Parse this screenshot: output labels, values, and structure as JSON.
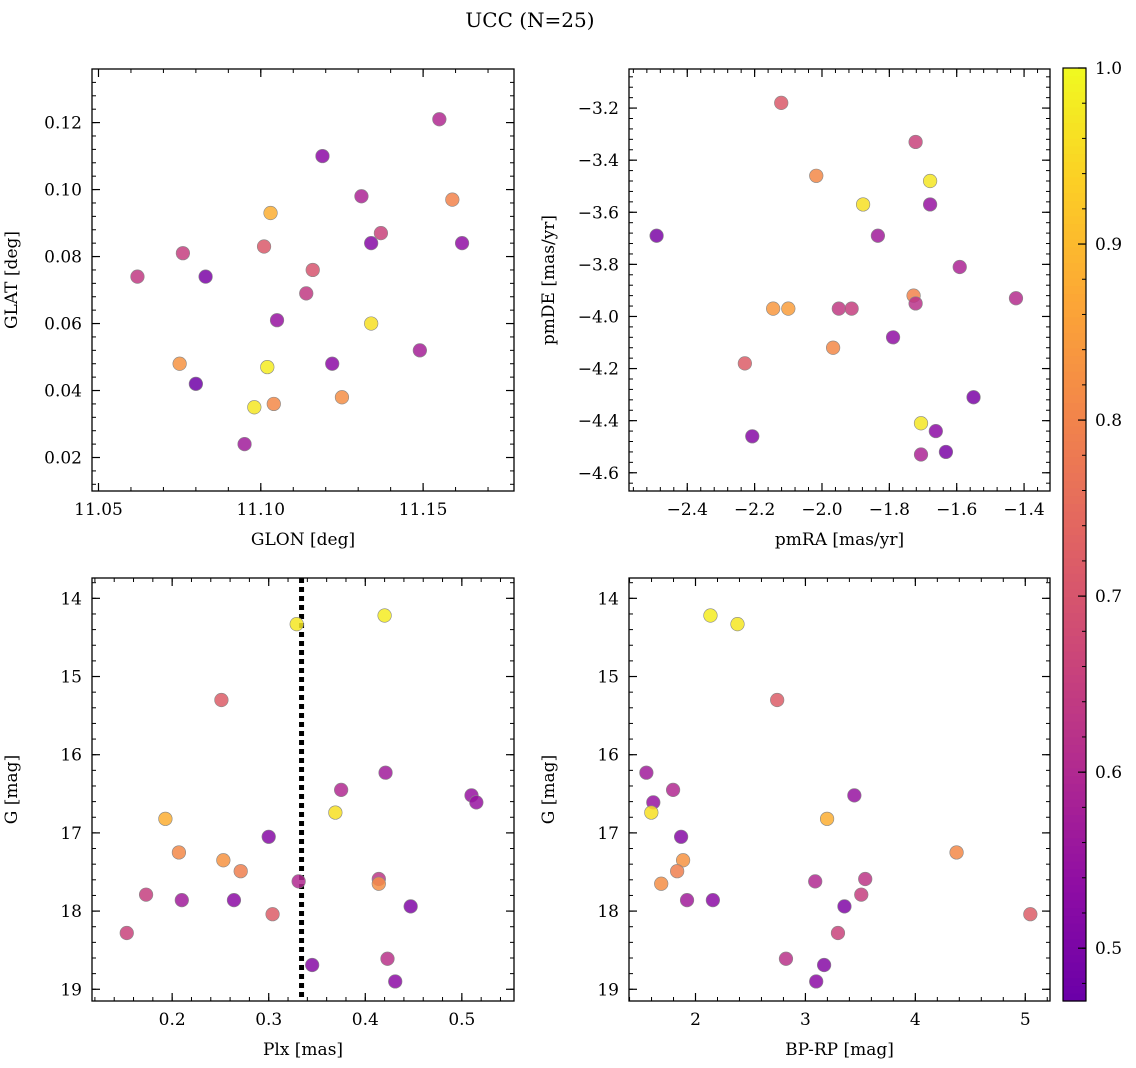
{
  "figure": {
    "title": "UCC (N=25)"
  },
  "colorbar": {
    "colormap": "plasma",
    "range": [
      0.47,
      1.0
    ],
    "ticks": [
      "0.5",
      "0.6",
      "0.7",
      "0.8",
      "0.9",
      "1.0"
    ],
    "tick_values": [
      0.5,
      0.6,
      0.7,
      0.8,
      0.9,
      1.0
    ]
  },
  "chart_data": [
    {
      "type": "scatter",
      "id": "glon-glat",
      "xlabel": "GLON [deg]",
      "ylabel": "GLAT [deg]",
      "xlim": [
        11.048,
        11.178
      ],
      "ylim": [
        0.01,
        0.136
      ],
      "x_ticks": [
        11.05,
        11.1,
        11.15
      ],
      "x_tick_labels": [
        "11.05",
        "11.10",
        "11.15"
      ],
      "y_ticks": [
        0.02,
        0.04,
        0.06,
        0.08,
        0.1,
        0.12
      ],
      "y_tick_labels": [
        "0.02",
        "0.04",
        "0.06",
        "0.08",
        "0.10",
        "0.12"
      ],
      "points": [
        {
          "x": 11.155,
          "y": 0.121,
          "c": 0.6
        },
        {
          "x": 11.119,
          "y": 0.11,
          "c": 0.53
        },
        {
          "x": 11.131,
          "y": 0.098,
          "c": 0.59
        },
        {
          "x": 11.159,
          "y": 0.097,
          "c": 0.8
        },
        {
          "x": 11.103,
          "y": 0.093,
          "c": 0.88
        },
        {
          "x": 11.137,
          "y": 0.087,
          "c": 0.66
        },
        {
          "x": 11.162,
          "y": 0.084,
          "c": 0.54
        },
        {
          "x": 11.134,
          "y": 0.084,
          "c": 0.52
        },
        {
          "x": 11.101,
          "y": 0.083,
          "c": 0.71
        },
        {
          "x": 11.076,
          "y": 0.081,
          "c": 0.65
        },
        {
          "x": 11.116,
          "y": 0.076,
          "c": 0.7
        },
        {
          "x": 11.083,
          "y": 0.074,
          "c": 0.5
        },
        {
          "x": 11.062,
          "y": 0.074,
          "c": 0.64
        },
        {
          "x": 11.114,
          "y": 0.069,
          "c": 0.64
        },
        {
          "x": 11.105,
          "y": 0.061,
          "c": 0.55
        },
        {
          "x": 11.134,
          "y": 0.06,
          "c": 0.96
        },
        {
          "x": 11.149,
          "y": 0.052,
          "c": 0.58
        },
        {
          "x": 11.122,
          "y": 0.048,
          "c": 0.53
        },
        {
          "x": 11.075,
          "y": 0.048,
          "c": 0.83
        },
        {
          "x": 11.102,
          "y": 0.047,
          "c": 0.98
        },
        {
          "x": 11.08,
          "y": 0.042,
          "c": 0.48
        },
        {
          "x": 11.125,
          "y": 0.038,
          "c": 0.82
        },
        {
          "x": 11.104,
          "y": 0.036,
          "c": 0.81
        },
        {
          "x": 11.098,
          "y": 0.035,
          "c": 0.97
        },
        {
          "x": 11.095,
          "y": 0.024,
          "c": 0.57
        }
      ]
    },
    {
      "type": "scatter",
      "id": "pmra-pmde",
      "xlabel": "pmRA [mas/yr]",
      "ylabel": "pmDE [mas/yr]",
      "xlim": [
        -2.573,
        -1.323
      ],
      "ylim": [
        -4.67,
        -3.05
      ],
      "x_ticks": [
        -2.4,
        -2.2,
        -2.0,
        -1.8,
        -1.6,
        -1.4
      ],
      "x_tick_labels": [
        "−2.4",
        "−2.2",
        "−2.0",
        "−1.8",
        "−1.6",
        "−1.4"
      ],
      "y_ticks": [
        -3.2,
        -3.4,
        -3.6,
        -3.8,
        -4.0,
        -4.2,
        -4.4,
        -4.6
      ],
      "y_tick_labels": [
        "−3.2",
        "−3.4",
        "−3.6",
        "−3.8",
        "−4.0",
        "−4.2",
        "−4.4",
        "−4.6"
      ],
      "points": [
        {
          "x": -2.121,
          "y": -3.18,
          "c": 0.71
        },
        {
          "x": -1.722,
          "y": -3.33,
          "c": 0.66
        },
        {
          "x": -2.017,
          "y": -3.46,
          "c": 0.81
        },
        {
          "x": -1.679,
          "y": -3.48,
          "c": 0.97
        },
        {
          "x": -1.878,
          "y": -3.57,
          "c": 0.96
        },
        {
          "x": -1.679,
          "y": -3.57,
          "c": 0.55
        },
        {
          "x": -2.491,
          "y": -3.69,
          "c": 0.5
        },
        {
          "x": -1.834,
          "y": -3.69,
          "c": 0.57
        },
        {
          "x": -1.591,
          "y": -3.81,
          "c": 0.59
        },
        {
          "x": -1.424,
          "y": -3.93,
          "c": 0.61
        },
        {
          "x": -1.728,
          "y": -3.92,
          "c": 0.8
        },
        {
          "x": -1.722,
          "y": -3.95,
          "c": 0.62
        },
        {
          "x": -2.145,
          "y": -3.97,
          "c": 0.84
        },
        {
          "x": -2.1,
          "y": -3.97,
          "c": 0.85
        },
        {
          "x": -1.95,
          "y": -3.97,
          "c": 0.64
        },
        {
          "x": -1.912,
          "y": -3.97,
          "c": 0.65
        },
        {
          "x": -1.967,
          "y": -4.12,
          "c": 0.81
        },
        {
          "x": -1.789,
          "y": -4.08,
          "c": 0.54
        },
        {
          "x": -2.229,
          "y": -4.18,
          "c": 0.72
        },
        {
          "x": -1.55,
          "y": -4.31,
          "c": 0.5
        },
        {
          "x": -1.706,
          "y": -4.41,
          "c": 0.97
        },
        {
          "x": -1.662,
          "y": -4.44,
          "c": 0.53
        },
        {
          "x": -2.207,
          "y": -4.46,
          "c": 0.52
        },
        {
          "x": -1.632,
          "y": -4.52,
          "c": 0.5
        },
        {
          "x": -1.706,
          "y": -4.53,
          "c": 0.59
        }
      ]
    },
    {
      "type": "scatter",
      "id": "plx-g",
      "xlabel": "Plx [mas]",
      "ylabel": "G [mag]",
      "xlim": [
        0.117,
        0.554
      ],
      "ylim": [
        19.15,
        13.74
      ],
      "y_inverted": true,
      "x_ticks": [
        0.2,
        0.3,
        0.4,
        0.5
      ],
      "x_tick_labels": [
        "0.2",
        "0.3",
        "0.4",
        "0.5"
      ],
      "y_ticks": [
        14,
        15,
        16,
        17,
        18,
        19
      ],
      "y_tick_labels": [
        "14",
        "15",
        "16",
        "17",
        "18",
        "19"
      ],
      "vline": {
        "x": 0.334,
        "style": "dotted"
      },
      "points": [
        {
          "x": 0.42,
          "y": 14.22,
          "c": 0.98
        },
        {
          "x": 0.329,
          "y": 14.33,
          "c": 0.97
        },
        {
          "x": 0.251,
          "y": 15.3,
          "c": 0.72
        },
        {
          "x": 0.421,
          "y": 16.23,
          "c": 0.57
        },
        {
          "x": 0.375,
          "y": 16.45,
          "c": 0.6
        },
        {
          "x": 0.51,
          "y": 16.52,
          "c": 0.55
        },
        {
          "x": 0.515,
          "y": 16.61,
          "c": 0.55
        },
        {
          "x": 0.369,
          "y": 16.74,
          "c": 0.96
        },
        {
          "x": 0.193,
          "y": 16.82,
          "c": 0.88
        },
        {
          "x": 0.3,
          "y": 17.05,
          "c": 0.52
        },
        {
          "x": 0.207,
          "y": 17.25,
          "c": 0.81
        },
        {
          "x": 0.253,
          "y": 17.35,
          "c": 0.83
        },
        {
          "x": 0.271,
          "y": 17.49,
          "c": 0.79
        },
        {
          "x": 0.414,
          "y": 17.59,
          "c": 0.63
        },
        {
          "x": 0.331,
          "y": 17.62,
          "c": 0.6
        },
        {
          "x": 0.414,
          "y": 17.65,
          "c": 0.82
        },
        {
          "x": 0.173,
          "y": 17.79,
          "c": 0.65
        },
        {
          "x": 0.21,
          "y": 17.86,
          "c": 0.57
        },
        {
          "x": 0.264,
          "y": 17.86,
          "c": 0.53
        },
        {
          "x": 0.447,
          "y": 17.94,
          "c": 0.51
        },
        {
          "x": 0.304,
          "y": 18.04,
          "c": 0.72
        },
        {
          "x": 0.153,
          "y": 18.28,
          "c": 0.66
        },
        {
          "x": 0.423,
          "y": 18.61,
          "c": 0.62
        },
        {
          "x": 0.345,
          "y": 18.69,
          "c": 0.52
        },
        {
          "x": 0.431,
          "y": 18.9,
          "c": 0.53
        }
      ]
    },
    {
      "type": "scatter",
      "id": "bprp-g",
      "xlabel": "BP-RP [mag]",
      "ylabel": "G [mag]",
      "xlim": [
        1.395,
        5.225
      ],
      "ylim": [
        19.15,
        13.74
      ],
      "y_inverted": true,
      "x_ticks": [
        2,
        3,
        4,
        5
      ],
      "x_tick_labels": [
        "2",
        "3",
        "4",
        "5"
      ],
      "y_ticks": [
        14,
        15,
        16,
        17,
        18,
        19
      ],
      "y_tick_labels": [
        "14",
        "15",
        "16",
        "17",
        "18",
        "19"
      ],
      "points": [
        {
          "x": 2.136,
          "y": 14.22,
          "c": 0.98
        },
        {
          "x": 2.382,
          "y": 14.33,
          "c": 0.97
        },
        {
          "x": 2.743,
          "y": 15.3,
          "c": 0.72
        },
        {
          "x": 1.553,
          "y": 16.23,
          "c": 0.57
        },
        {
          "x": 1.796,
          "y": 16.45,
          "c": 0.6
        },
        {
          "x": 3.445,
          "y": 16.52,
          "c": 0.55
        },
        {
          "x": 1.616,
          "y": 16.61,
          "c": 0.55
        },
        {
          "x": 1.598,
          "y": 16.74,
          "c": 0.96
        },
        {
          "x": 3.197,
          "y": 16.82,
          "c": 0.88
        },
        {
          "x": 1.869,
          "y": 17.05,
          "c": 0.52
        },
        {
          "x": 4.375,
          "y": 17.25,
          "c": 0.81
        },
        {
          "x": 1.887,
          "y": 17.35,
          "c": 0.83
        },
        {
          "x": 1.833,
          "y": 17.49,
          "c": 0.79
        },
        {
          "x": 3.544,
          "y": 17.59,
          "c": 0.63
        },
        {
          "x": 3.089,
          "y": 17.62,
          "c": 0.6
        },
        {
          "x": 1.688,
          "y": 17.65,
          "c": 0.82
        },
        {
          "x": 3.508,
          "y": 17.79,
          "c": 0.65
        },
        {
          "x": 1.923,
          "y": 17.86,
          "c": 0.57
        },
        {
          "x": 2.158,
          "y": 17.86,
          "c": 0.53
        },
        {
          "x": 3.355,
          "y": 17.94,
          "c": 0.51
        },
        {
          "x": 5.046,
          "y": 18.04,
          "c": 0.72
        },
        {
          "x": 3.296,
          "y": 18.28,
          "c": 0.66
        },
        {
          "x": 2.823,
          "y": 18.61,
          "c": 0.62
        },
        {
          "x": 3.17,
          "y": 18.69,
          "c": 0.52
        },
        {
          "x": 3.098,
          "y": 18.9,
          "c": 0.53
        }
      ]
    }
  ]
}
